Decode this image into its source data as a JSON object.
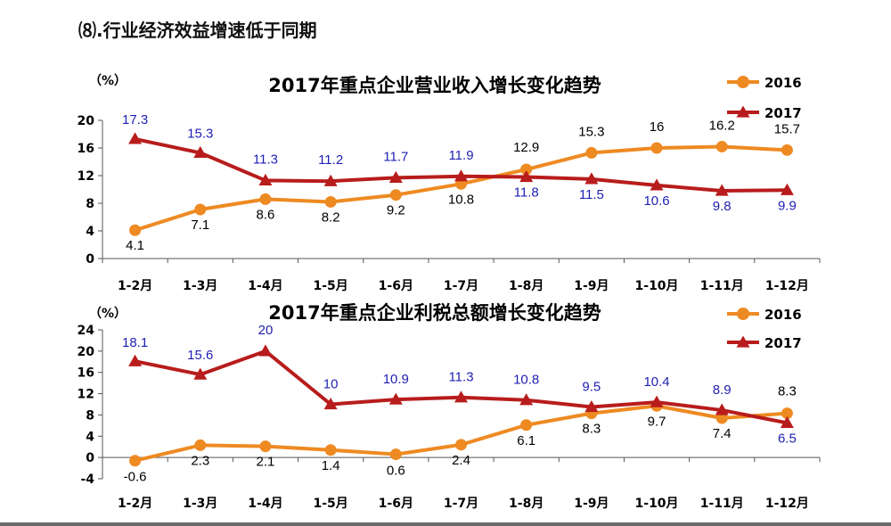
{
  "page_title": "⑻.行业经济效益增速低于同期",
  "colors": {
    "series_2016": "#EE8A22",
    "series_2017": "#B81C1C",
    "label_2017": "#1F1FB4",
    "label_2016": "#000000"
  },
  "chart_data": [
    {
      "type": "line",
      "title": "2017年重点企业营业收入增长变化趋势",
      "unit_label": "（%）",
      "categories": [
        "1-2月",
        "1-3月",
        "1-4月",
        "1-5月",
        "1-6月",
        "1-7月",
        "1-8月",
        "1-9月",
        "1-10月",
        "1-11月",
        "1-12月"
      ],
      "ylim": [
        0,
        20
      ],
      "yticks": [
        "0",
        "4",
        "8",
        "12",
        "16",
        "20"
      ],
      "legend_position": "top-right",
      "series": [
        {
          "name": "2016",
          "marker": "circle",
          "values": [
            4.1,
            7.1,
            8.6,
            8.2,
            9.2,
            10.8,
            12.9,
            15.3,
            16,
            16.2,
            15.7
          ],
          "labels": [
            "4.1",
            "7.1",
            "8.6",
            "8.2",
            "9.2",
            "10.8",
            "12.9",
            "15.3",
            "16",
            "16.2",
            "15.7"
          ]
        },
        {
          "name": "2017",
          "marker": "triangle",
          "values": [
            17.3,
            15.3,
            11.3,
            11.2,
            11.7,
            11.9,
            11.8,
            11.5,
            10.6,
            9.8,
            9.9
          ],
          "labels": [
            "17.3",
            "15.3",
            "11.3",
            "11.2",
            "11.7",
            "11.9",
            "11.8",
            "11.5",
            "10.6",
            "9.8",
            "9.9"
          ]
        }
      ]
    },
    {
      "type": "line",
      "title": "2017年重点企业利税总额增长变化趋势",
      "unit_label": "（%）",
      "categories": [
        "1-2月",
        "1-3月",
        "1-4月",
        "1-5月",
        "1-6月",
        "1-7月",
        "1-8月",
        "1-9月",
        "1-10月",
        "1-11月",
        "1-12月"
      ],
      "ylim": [
        -4,
        24
      ],
      "yticks": [
        "-4",
        "0",
        "4",
        "8",
        "12",
        "16",
        "20",
        "24"
      ],
      "legend_position": "top-right",
      "series": [
        {
          "name": "2016",
          "marker": "circle",
          "values": [
            -0.6,
            2.3,
            2.1,
            1.4,
            0.6,
            2.4,
            6.1,
            8.3,
            9.7,
            7.4,
            8.3
          ],
          "labels": [
            "-0.6",
            "2.3",
            "2.1",
            "1.4",
            "0.6",
            "2.4",
            "6.1",
            "8.3",
            "9.7",
            "7.4",
            "8.3"
          ]
        },
        {
          "name": "2017",
          "marker": "triangle",
          "values": [
            18.1,
            15.6,
            20,
            10,
            10.9,
            11.3,
            10.8,
            9.5,
            10.4,
            8.9,
            6.5
          ],
          "labels": [
            "18.1",
            "15.6",
            "20",
            "10",
            "10.9",
            "11.3",
            "10.8",
            "9.5",
            "10.4",
            "8.9",
            "6.5"
          ]
        }
      ]
    }
  ]
}
